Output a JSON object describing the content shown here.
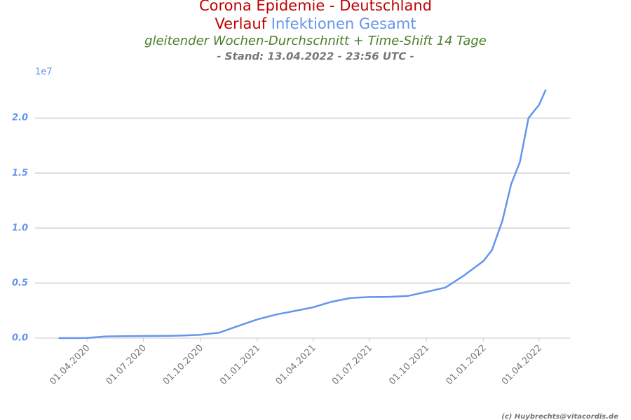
{
  "chart_data": {
    "type": "line",
    "title": {
      "line1": "Corona Epidemie - Deutschland",
      "line2_a": "Verlauf",
      "line2_b": "Infektionen Gesamt"
    },
    "subtitle": "gleitender Wochen-Durchschnitt + Time-Shift 14 Tage",
    "stand": "- Stand: 13.04.2022 - 23:56 UTC -",
    "credit": "(c) Huybrechts@vitacordis.de",
    "y_offset_label": "1e7",
    "x": [
      "2020-02-15",
      "2020-03-15",
      "2020-04-01",
      "2020-05-01",
      "2020-06-01",
      "2020-07-01",
      "2020-08-01",
      "2020-09-01",
      "2020-10-01",
      "2020-11-01",
      "2020-12-01",
      "2021-01-01",
      "2021-02-01",
      "2021-03-01",
      "2021-04-01",
      "2021-05-01",
      "2021-06-01",
      "2021-07-01",
      "2021-08-01",
      "2021-09-01",
      "2021-10-01",
      "2021-11-01",
      "2021-12-01",
      "2022-01-01",
      "2022-01-15",
      "2022-02-01",
      "2022-02-15",
      "2022-03-01",
      "2022-03-15",
      "2022-04-01",
      "2022-04-12"
    ],
    "series": [
      {
        "name": "Infektionen Gesamt",
        "color": "#6495ed",
        "values": [
          0,
          0,
          0.002,
          0.015,
          0.018,
          0.019,
          0.02,
          0.023,
          0.03,
          0.05,
          0.11,
          0.17,
          0.215,
          0.245,
          0.28,
          0.33,
          0.365,
          0.373,
          0.375,
          0.383,
          0.42,
          0.46,
          0.57,
          0.7,
          0.8,
          1.07,
          1.4,
          1.6,
          2.0,
          2.12,
          2.26
        ]
      }
    ],
    "xlim": [
      "2020-01-08",
      "2022-05-21"
    ],
    "xticks": [
      {
        "value": "2020-04-01",
        "label": "01.04.2020"
      },
      {
        "value": "2020-07-01",
        "label": "01.07.2020"
      },
      {
        "value": "2020-10-01",
        "label": "01.10.2020"
      },
      {
        "value": "2021-01-01",
        "label": "01.01.2021"
      },
      {
        "value": "2021-04-01",
        "label": "01.04.2021"
      },
      {
        "value": "2021-07-01",
        "label": "01.07.2021"
      },
      {
        "value": "2021-10-01",
        "label": "01.10.2021"
      },
      {
        "value": "2022-01-01",
        "label": "01.01.2022"
      },
      {
        "value": "2022-04-01",
        "label": "01.04.2022"
      }
    ],
    "ylim": [
      0,
      2.38
    ],
    "yticks": [
      {
        "value": 0,
        "label": "0.0"
      },
      0.5,
      {
        "value": 1,
        "label": "1.0"
      },
      1.5,
      {
        "value": 2,
        "label": "2.0"
      }
    ],
    "grid": true
  }
}
